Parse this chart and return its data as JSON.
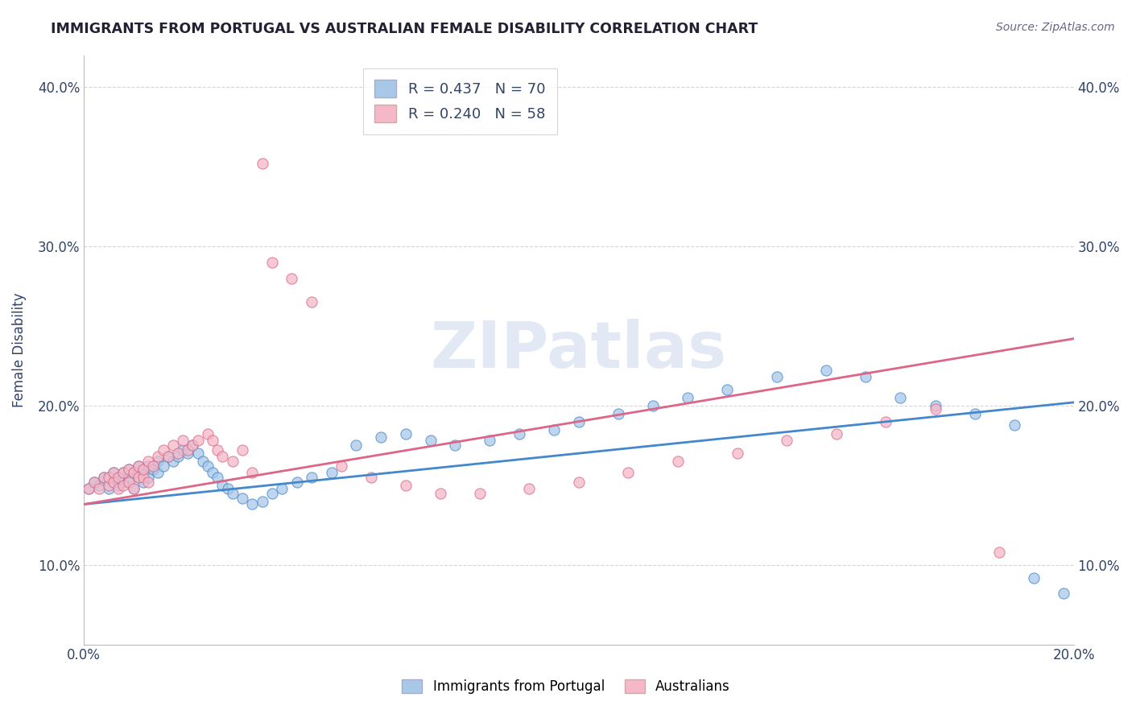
{
  "title": "IMMIGRANTS FROM PORTUGAL VS AUSTRALIAN FEMALE DISABILITY CORRELATION CHART",
  "source": "Source: ZipAtlas.com",
  "ylabel": "Female Disability",
  "xlim": [
    0.0,
    0.2
  ],
  "ylim": [
    0.05,
    0.42
  ],
  "color_blue": "#a8c8e8",
  "color_pink": "#f4b8c8",
  "line_blue": "#4488cc",
  "line_pink": "#dd6688",
  "watermark": "ZIPatlas",
  "legend_r1": "R = 0.437   N = 70",
  "legend_r2": "R = 0.240   N = 58",
  "blue_line_x": [
    0.0,
    0.2
  ],
  "blue_line_y": [
    0.138,
    0.202
  ],
  "pink_line_x": [
    0.0,
    0.2
  ],
  "pink_line_y": [
    0.138,
    0.242
  ],
  "blue_scatter_x": [
    0.001,
    0.002,
    0.003,
    0.004,
    0.005,
    0.005,
    0.006,
    0.006,
    0.007,
    0.007,
    0.008,
    0.008,
    0.009,
    0.009,
    0.01,
    0.01,
    0.011,
    0.011,
    0.012,
    0.012,
    0.013,
    0.013,
    0.014,
    0.015,
    0.015,
    0.016,
    0.017,
    0.018,
    0.019,
    0.02,
    0.021,
    0.022,
    0.023,
    0.024,
    0.025,
    0.026,
    0.027,
    0.028,
    0.029,
    0.03,
    0.032,
    0.034,
    0.036,
    0.038,
    0.04,
    0.043,
    0.046,
    0.05,
    0.055,
    0.06,
    0.065,
    0.07,
    0.075,
    0.082,
    0.088,
    0.095,
    0.1,
    0.108,
    0.115,
    0.122,
    0.13,
    0.14,
    0.15,
    0.158,
    0.165,
    0.172,
    0.18,
    0.188,
    0.192,
    0.198
  ],
  "blue_scatter_y": [
    0.148,
    0.152,
    0.15,
    0.155,
    0.148,
    0.155,
    0.152,
    0.158,
    0.15,
    0.155,
    0.152,
    0.158,
    0.155,
    0.16,
    0.148,
    0.158,
    0.155,
    0.162,
    0.152,
    0.158,
    0.155,
    0.162,
    0.16,
    0.165,
    0.158,
    0.162,
    0.168,
    0.165,
    0.168,
    0.172,
    0.17,
    0.175,
    0.17,
    0.165,
    0.162,
    0.158,
    0.155,
    0.15,
    0.148,
    0.145,
    0.142,
    0.138,
    0.14,
    0.145,
    0.148,
    0.152,
    0.155,
    0.158,
    0.175,
    0.18,
    0.182,
    0.178,
    0.175,
    0.178,
    0.182,
    0.185,
    0.19,
    0.195,
    0.2,
    0.205,
    0.21,
    0.218,
    0.222,
    0.218,
    0.205,
    0.2,
    0.195,
    0.188,
    0.092,
    0.082
  ],
  "pink_scatter_x": [
    0.001,
    0.002,
    0.003,
    0.004,
    0.005,
    0.005,
    0.006,
    0.006,
    0.007,
    0.007,
    0.008,
    0.008,
    0.009,
    0.009,
    0.01,
    0.01,
    0.011,
    0.011,
    0.012,
    0.012,
    0.013,
    0.013,
    0.014,
    0.015,
    0.016,
    0.017,
    0.018,
    0.019,
    0.02,
    0.021,
    0.022,
    0.023,
    0.025,
    0.026,
    0.027,
    0.028,
    0.03,
    0.032,
    0.034,
    0.036,
    0.038,
    0.042,
    0.046,
    0.052,
    0.058,
    0.065,
    0.072,
    0.08,
    0.09,
    0.1,
    0.11,
    0.12,
    0.132,
    0.142,
    0.152,
    0.162,
    0.172,
    0.185
  ],
  "pink_scatter_y": [
    0.148,
    0.152,
    0.148,
    0.155,
    0.15,
    0.155,
    0.152,
    0.158,
    0.148,
    0.155,
    0.15,
    0.158,
    0.152,
    0.16,
    0.148,
    0.158,
    0.155,
    0.162,
    0.155,
    0.16,
    0.152,
    0.165,
    0.162,
    0.168,
    0.172,
    0.168,
    0.175,
    0.17,
    0.178,
    0.172,
    0.175,
    0.178,
    0.182,
    0.178,
    0.172,
    0.168,
    0.165,
    0.172,
    0.158,
    0.352,
    0.29,
    0.28,
    0.265,
    0.162,
    0.155,
    0.15,
    0.145,
    0.145,
    0.148,
    0.152,
    0.158,
    0.165,
    0.17,
    0.178,
    0.182,
    0.19,
    0.198,
    0.108
  ]
}
